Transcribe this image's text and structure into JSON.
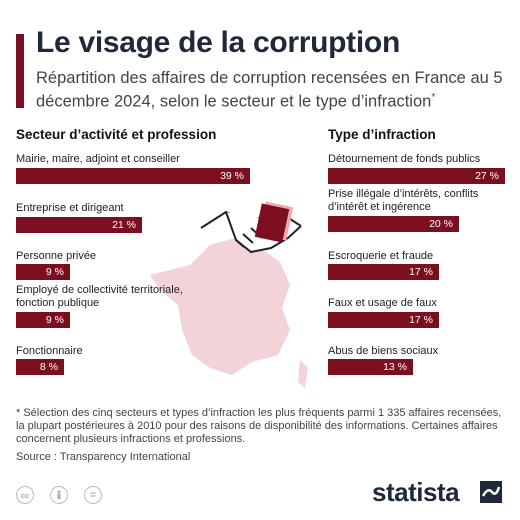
{
  "header": {
    "title": "Le visage de la corruption",
    "subtitle": "Répartition des affaires de corruption recensées en France au 5 décembre 2024, selon le secteur et le type d’infraction",
    "subtitle_marker": "*"
  },
  "chart_data": [
    {
      "type": "bar",
      "orientation": "horizontal",
      "title": "Secteur d’activité et profession",
      "categories": [
        "Mairie, maire, adjoint et conseiller",
        "Entreprise et dirigeant",
        "Personne privée",
        "Employé de collectivité territoriale, fonction publique",
        "Fonctionnaire"
      ],
      "values": [
        39,
        21,
        9,
        9,
        8
      ],
      "value_labels": [
        "39 %",
        "21 %",
        "9 %",
        "9 %",
        "8 %"
      ],
      "unit": "%",
      "color": "#7b0f1f"
    },
    {
      "type": "bar",
      "orientation": "horizontal",
      "title": "Type d’infraction",
      "categories": [
        "Détournement de fonds publics",
        "Prise illégale d’intérêts, conflits d’intérêt et ingérence",
        "Escroquerie et fraude",
        "Faux et usage de faux",
        "Abus de biens sociaux"
      ],
      "values": [
        27,
        20,
        17,
        17,
        13
      ],
      "value_labels": [
        "27 %",
        "20 %",
        "17 %",
        "17 %",
        "13 %"
      ],
      "unit": "%",
      "color": "#7b0f1f"
    }
  ],
  "footer": {
    "note": "* Sélection des cinq secteurs et types d’infraction les plus fréquents parmi 1 335 affaires recensées, la plupart postérieures à 2010 pour des raisons de disponibilité des informations. Certaines affaires concernent plusieurs infractions et professions.",
    "source": "Source : Transparency International",
    "license_icons": [
      "cc",
      "by",
      "="
    ],
    "brand": "statista"
  },
  "colors": {
    "accent": "#7b0f1f",
    "title": "#1e2a3a",
    "decoration": "#f2d4d8"
  },
  "icons": [
    "handshake-icon",
    "banknote-icon",
    "france-map-icon",
    "creative-commons-icon",
    "attribution-icon",
    "no-derivatives-icon",
    "statista-logo-icon"
  ]
}
